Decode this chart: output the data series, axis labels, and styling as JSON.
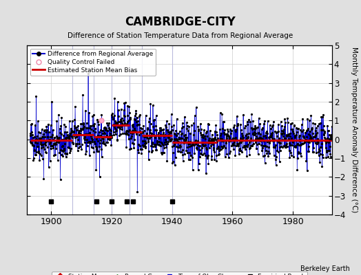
{
  "title": "CAMBRIDGE-CITY",
  "subtitle": "Difference of Station Temperature Data from Regional Average",
  "ylabel": "Monthly Temperature Anomaly Difference (°C)",
  "credit": "Berkeley Earth",
  "xlim": [
    1892,
    1993
  ],
  "ylim": [
    -4,
    5
  ],
  "yticks": [
    -4,
    -3,
    -2,
    -1,
    0,
    1,
    2,
    3,
    4,
    5
  ],
  "xticks": [
    1900,
    1920,
    1940,
    1960,
    1980
  ],
  "bg_color": "#e0e0e0",
  "plot_bg_color": "#ffffff",
  "seed": 42,
  "start_year": 1893,
  "end_year": 1992,
  "bias_segments": [
    {
      "x_start": 1893,
      "x_end": 1907,
      "bias": -0.05
    },
    {
      "x_start": 1907,
      "x_end": 1914,
      "bias": 0.25
    },
    {
      "x_start": 1914,
      "x_end": 1920,
      "bias": 0.15
    },
    {
      "x_start": 1920,
      "x_end": 1926,
      "bias": 0.75
    },
    {
      "x_start": 1926,
      "x_end": 1930,
      "bias": 0.4
    },
    {
      "x_start": 1930,
      "x_end": 1940,
      "bias": 0.2
    },
    {
      "x_start": 1940,
      "x_end": 1955,
      "bias": -0.15
    },
    {
      "x_start": 1955,
      "x_end": 1993,
      "bias": -0.05
    }
  ],
  "break_years": [
    1900,
    1915,
    1920,
    1925,
    1927,
    1940
  ],
  "vertical_line_years": [
    1907,
    1914,
    1920,
    1926,
    1930,
    1940
  ],
  "data_line_color": "#0000cc",
  "data_marker_color": "#000000",
  "bias_line_color": "#cc0000",
  "qc_failed_color": "#ffaacc",
  "qc_failed_year": 1916.5,
  "noise_std": 0.55
}
